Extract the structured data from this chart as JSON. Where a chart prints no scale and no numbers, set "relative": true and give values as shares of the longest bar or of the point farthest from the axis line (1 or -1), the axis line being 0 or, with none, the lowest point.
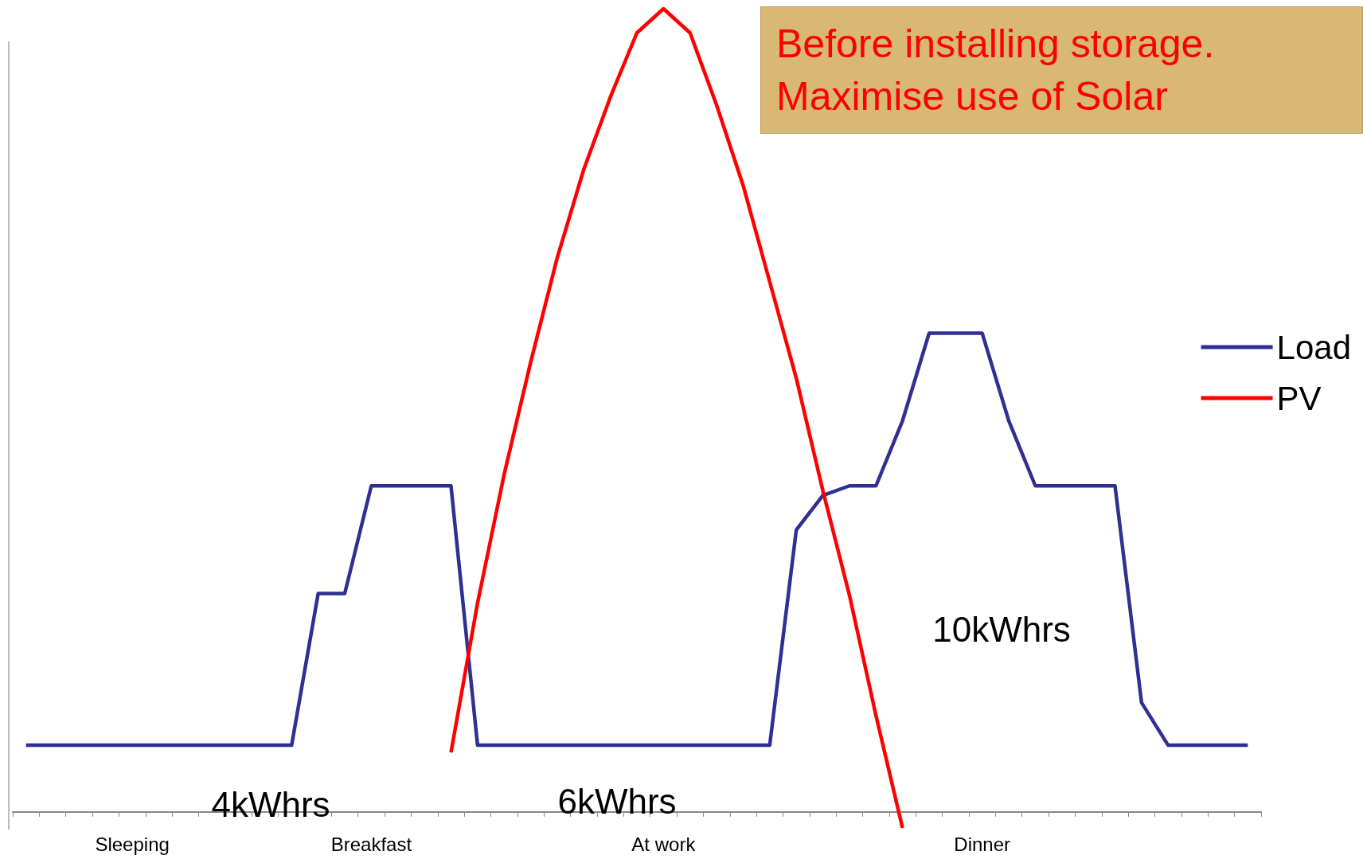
{
  "chart_data": {
    "type": "line",
    "title": "Before installing storage.\nMaximise use of Solar",
    "relative": true,
    "categories": [
      null,
      null,
      null,
      null,
      "Sleeping",
      null,
      null,
      null,
      null,
      null,
      null,
      null,
      null,
      "Breakfast",
      null,
      null,
      null,
      null,
      null,
      null,
      null,
      null,
      null,
      null,
      "At work",
      null,
      null,
      null,
      null,
      null,
      null,
      null,
      null,
      null,
      null,
      null,
      "Dinner",
      null,
      null,
      null,
      null,
      null,
      null,
      null,
      null,
      null,
      null
    ],
    "series": [
      {
        "name": "Load",
        "color": "#2e3192",
        "values": [
          0.083,
          0.083,
          0.083,
          0.083,
          0.083,
          0.083,
          0.083,
          0.083,
          0.083,
          0.083,
          0.083,
          0.272,
          0.272,
          0.406,
          0.406,
          0.406,
          0.406,
          0.083,
          0.083,
          0.083,
          0.083,
          0.083,
          0.083,
          0.083,
          0.083,
          0.083,
          0.083,
          0.083,
          0.083,
          0.351,
          0.394,
          0.406,
          0.406,
          0.487,
          0.596,
          0.596,
          0.596,
          0.487,
          0.406,
          0.406,
          0.406,
          0.406,
          0.136,
          0.083,
          0.083,
          0.083,
          0.083
        ]
      },
      {
        "name": "PV",
        "color": "#ff0000",
        "values": [
          null,
          null,
          null,
          null,
          null,
          null,
          null,
          null,
          null,
          null,
          null,
          null,
          null,
          null,
          null,
          null,
          0.074,
          0.26,
          0.42,
          0.56,
          0.69,
          0.8,
          0.89,
          0.97,
          1,
          0.97,
          0.88,
          0.78,
          0.66,
          0.54,
          0.4,
          0.27,
          0.12,
          -0.02,
          null,
          null,
          null,
          null,
          null,
          null,
          null,
          null,
          null,
          null,
          null,
          null,
          null
        ]
      }
    ],
    "annotations": [
      "4kWhrs",
      "6kWhrs",
      "10kWhrs"
    ],
    "legend": "right",
    "grid": false,
    "marker": "none",
    "line_style": "solid"
  }
}
